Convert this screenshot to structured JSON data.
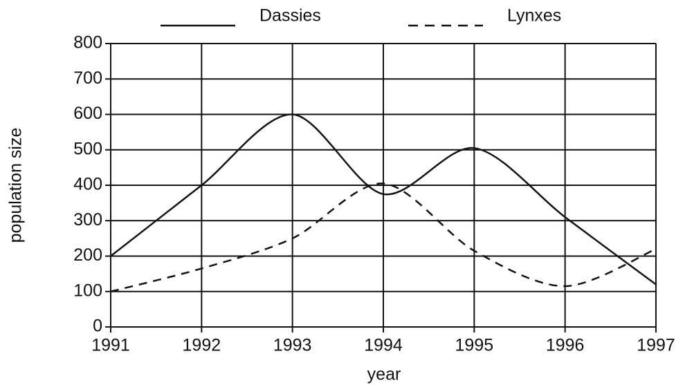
{
  "chart_data": {
    "type": "line",
    "x": [
      1991,
      1992,
      1993,
      1994,
      1995,
      1996,
      1997
    ],
    "series": [
      {
        "name": "Dassies",
        "color": "#111111",
        "style": "solid",
        "values": [
          200,
          400,
          600,
          375,
          505,
          310,
          120
        ]
      },
      {
        "name": "Lynxes",
        "color": "#111111",
        "style": "dashed",
        "values": [
          100,
          165,
          250,
          405,
          215,
          115,
          220
        ]
      }
    ],
    "xlabel": "year",
    "ylabel": "population size",
    "xlim": [
      1991,
      1997
    ],
    "xticks": [
      1991,
      1992,
      1993,
      1994,
      1995,
      1996,
      1997
    ],
    "ylim": [
      0,
      800
    ],
    "yticks": [
      0,
      100,
      200,
      300,
      400,
      500,
      600,
      700,
      800
    ],
    "grid": true,
    "legend": "top"
  }
}
